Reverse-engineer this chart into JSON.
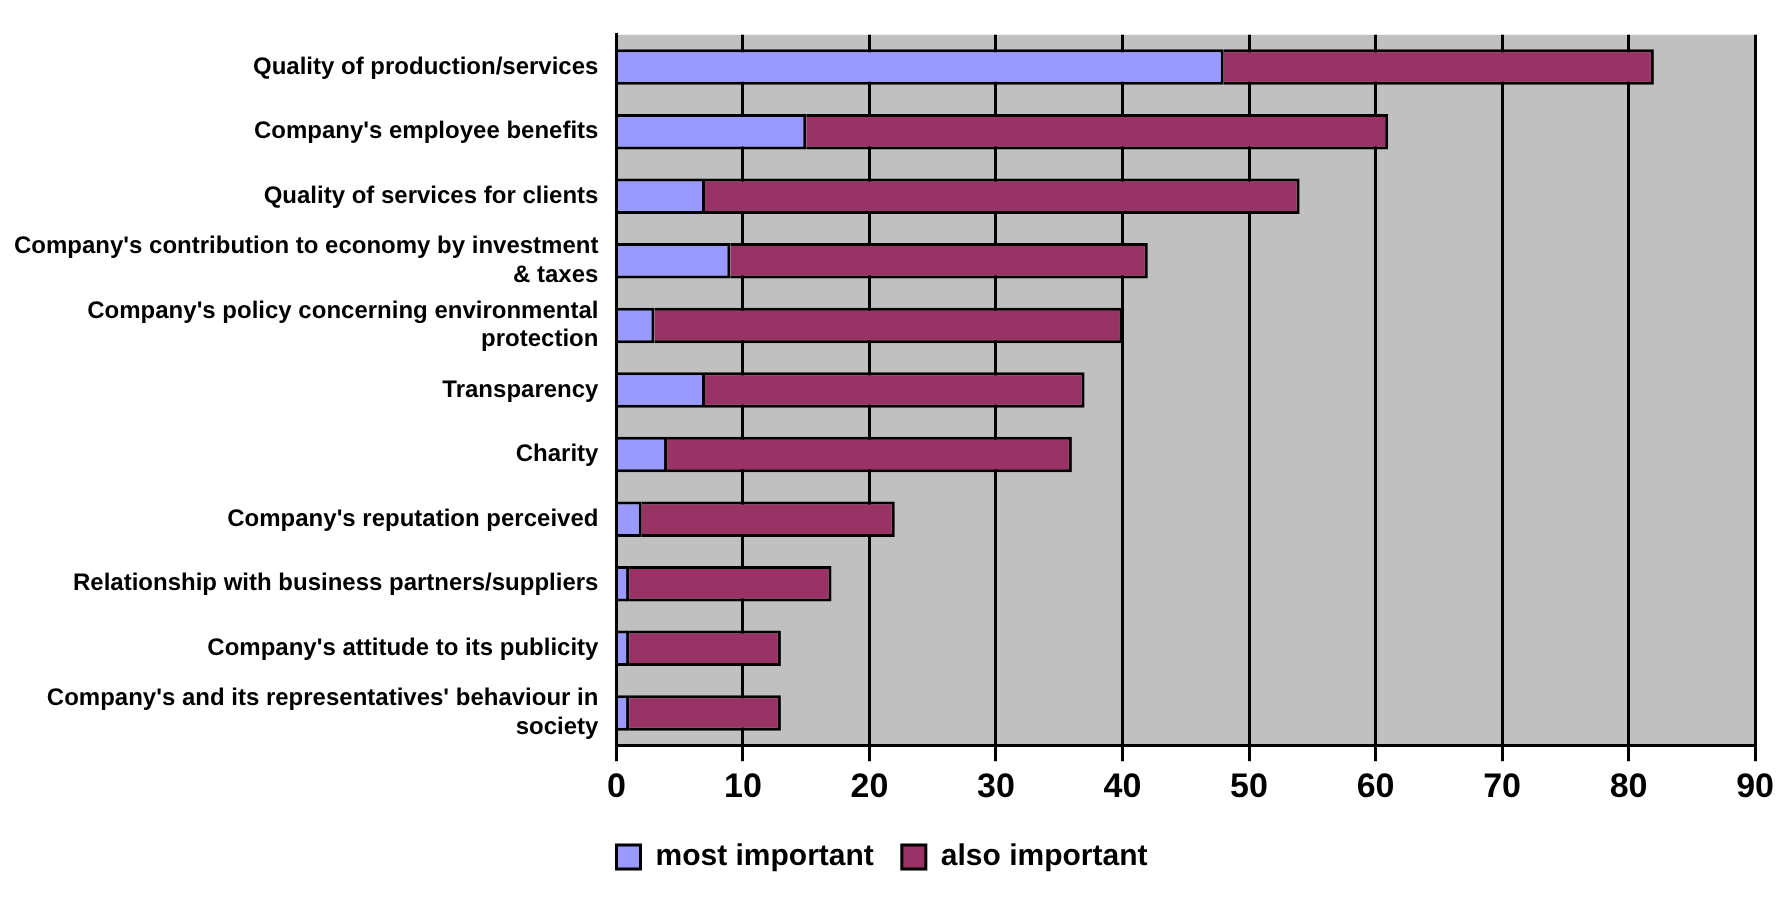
{
  "chart_data": {
    "type": "bar",
    "orientation": "horizontal",
    "stacked": true,
    "categories": [
      "Quality of production/services",
      "Company's employee benefits",
      "Quality of services for clients",
      "Company's contribution to economy by investment & taxes",
      "Company's policy concerning environmental protection",
      "Transparency",
      "Charity",
      "Company's reputation perceived",
      "Relationship with business partners/suppliers",
      "Company's attitude to its publicity",
      "Company's and its representatives' behaviour in society"
    ],
    "series": [
      {
        "name": "most important",
        "color": "#9999ff",
        "values": [
          48,
          15,
          7,
          9,
          3,
          7,
          4,
          2,
          1,
          1,
          1
        ]
      },
      {
        "name": "also important",
        "color": "#993366",
        "values": [
          34,
          46,
          47,
          33,
          37,
          30,
          32,
          20,
          16,
          12,
          12
        ]
      }
    ],
    "xlim": [
      0,
      90
    ],
    "xticks": [
      0,
      10,
      20,
      30,
      40,
      50,
      60,
      70,
      80,
      90
    ],
    "grid": "x",
    "legend": "bottom"
  }
}
